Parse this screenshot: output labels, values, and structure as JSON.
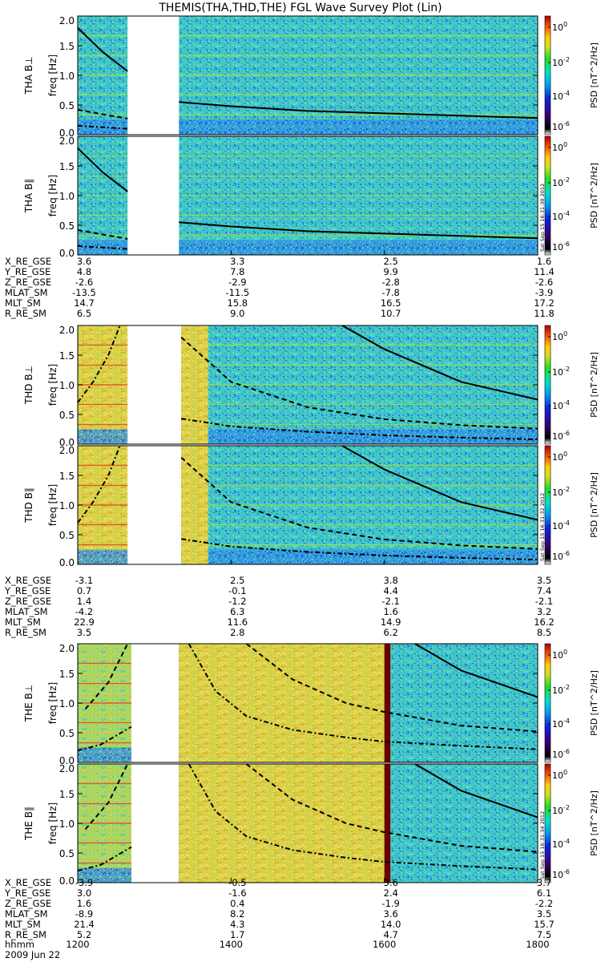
{
  "chart_data": {
    "type": "heatmap",
    "title": "THEMIS(THA,THD,THE) FGL Wave Survey Plot (Lin)",
    "colorbar": {
      "label": "PSD [nT^2/Hz]",
      "ticks": [
        "10^0",
        "10^-2",
        "10^-4",
        "10^-6"
      ],
      "scale": "log"
    },
    "probes": [
      {
        "name": "THA",
        "panels": [
          {
            "ylabel_probe": "THA B⊥",
            "stamp": ""
          },
          {
            "ylabel_probe": "THA B∥",
            "stamp": "Sat Sep 15 16:31:30 2012"
          }
        ],
        "data_windows": [
          [
            1200,
            1265
          ],
          [
            1332,
            1800
          ]
        ],
        "curves": {
          "solid_1": [
            [
              1200,
              1.8
            ],
            [
              1232,
              1.4
            ],
            [
              1265,
              1.07
            ]
          ],
          "solid_2": [
            [
              1332,
              0.55
            ],
            [
              1400,
              0.48
            ],
            [
              1500,
              0.4
            ],
            [
              1600,
              0.36
            ],
            [
              1700,
              0.32
            ],
            [
              1800,
              0.28
            ]
          ],
          "dashed": [
            [
              1200,
              0.42
            ],
            [
              1265,
              0.27
            ]
          ],
          "dashdot": [
            [
              1200,
              0.15
            ],
            [
              1265,
              0.1
            ]
          ]
        },
        "ephemeris": {
          "labels": [
            "X_RE_GSE",
            "Y_RE_GSE",
            "Z_RE_GSE",
            "MLAT_SM",
            "MLT_SM",
            "R_RE_SM"
          ],
          "columns": [
            [
              "3.6",
              "4.8",
              "-2.6",
              "-13.5",
              "14.7",
              "6.5"
            ],
            [
              "3.3",
              "7.8",
              "-2.9",
              "-11.5",
              "15.8",
              "9.0"
            ],
            [
              "2.5",
              "9.9",
              "-2.8",
              "-7.8",
              "16.5",
              "10.7"
            ],
            [
              "1.6",
              "11.4",
              "-2.6",
              "-3.9",
              "17.2",
              "11.8"
            ]
          ]
        }
      },
      {
        "name": "THD",
        "panels": [
          {
            "ylabel_probe": "THD B⊥",
            "stamp": ""
          },
          {
            "ylabel_probe": "THD B∥",
            "stamp": "Sat Sep 15 16:31:32 2012"
          }
        ],
        "data_windows": [
          [
            1200,
            1265
          ],
          [
            1335,
            1800
          ]
        ],
        "curves": {
          "dashdot_1": [
            [
              1200,
              0.7
            ],
            [
              1220,
              1.05
            ],
            [
              1240,
              1.5
            ],
            [
              1255,
              2.0
            ]
          ],
          "solid": [
            [
              1545,
              2.0
            ],
            [
              1600,
              1.6
            ],
            [
              1700,
              1.05
            ],
            [
              1800,
              0.75
            ]
          ],
          "dashed": [
            [
              1335,
              1.8
            ],
            [
              1400,
              1.05
            ],
            [
              1500,
              0.62
            ],
            [
              1600,
              0.42
            ],
            [
              1700,
              0.32
            ],
            [
              1800,
              0.26
            ]
          ],
          "dashdot_2": [
            [
              1335,
              0.43
            ],
            [
              1400,
              0.3
            ],
            [
              1500,
              0.21
            ],
            [
              1600,
              0.15
            ],
            [
              1700,
              0.11
            ],
            [
              1800,
              0.08
            ]
          ]
        },
        "ephemeris": {
          "labels": [
            "X_RE_GSE",
            "Y_RE_GSE",
            "Z_RE_GSE",
            "MLAT_SM",
            "MLT_SM",
            "R_RE_SM"
          ],
          "columns": [
            [
              "-3.1",
              "0.7",
              "1.4",
              "-4.2",
              "22.9",
              "3.5"
            ],
            [
              "2.5",
              "-0.1",
              "-1.2",
              "6.3",
              "11.6",
              "2.8"
            ],
            [
              "3.8",
              "4.4",
              "-2.1",
              "1.6",
              "14.9",
              "6.2"
            ],
            [
              "3.5",
              "7.4",
              "-2.1",
              "3.2",
              "16.2",
              "8.5"
            ]
          ]
        }
      },
      {
        "name": "THE",
        "panels": [
          {
            "ylabel_probe": "THE B⊥",
            "stamp": ""
          },
          {
            "ylabel_probe": "THE B∥",
            "stamp": "Sat Sep 15 16:31:34 2012"
          }
        ],
        "data_windows": [
          [
            1200,
            1270
          ],
          [
            1332,
            1800
          ]
        ],
        "curves": {
          "dashed_1": [
            [
              1210,
              0.9
            ],
            [
              1240,
              1.35
            ],
            [
              1265,
              2.0
            ]
          ],
          "dashdot_1": [
            [
              1200,
              0.2
            ],
            [
              1230,
              0.3
            ],
            [
              1270,
              0.6
            ]
          ],
          "dashdot_2": [
            [
              1345,
              2.0
            ],
            [
              1380,
              1.2
            ],
            [
              1420,
              0.78
            ],
            [
              1480,
              0.55
            ],
            [
              1550,
              0.42
            ],
            [
              1600,
              0.35
            ],
            [
              1700,
              0.28
            ],
            [
              1800,
              0.22
            ]
          ],
          "dashed_2": [
            [
              1420,
              2.0
            ],
            [
              1480,
              1.4
            ],
            [
              1550,
              1.0
            ],
            [
              1600,
              0.85
            ],
            [
              1700,
              0.62
            ],
            [
              1800,
              0.52
            ]
          ],
          "solid": [
            [
              1640,
              2.0
            ],
            [
              1700,
              1.55
            ],
            [
              1800,
              1.1
            ]
          ]
        },
        "ephemeris": {
          "labels": [
            "X_RE_GSE",
            "Y_RE_GSE",
            "Z_RE_GSE",
            "MLAT_SM",
            "MLT_SM",
            "R_RE_SM"
          ],
          "columns": [
            [
              "-3.9",
              "3.0",
              "1.6",
              "-8.9",
              "21.4",
              "5.2"
            ],
            [
              "-0.5",
              "-1.6",
              "0.4",
              "8.2",
              "4.3",
              "1.7"
            ],
            [
              "3.6",
              "2.4",
              "-1.9",
              "3.6",
              "14.0",
              "4.7"
            ],
            [
              "3.7",
              "6.1",
              "-2.2",
              "3.5",
              "15.7",
              "7.5"
            ]
          ]
        }
      }
    ],
    "ylabel": "freq [Hz]",
    "y_ticks": [
      "0.0",
      "0.5",
      "1.0",
      "1.5",
      "2.0"
    ],
    "ylim": [
      0,
      2
    ],
    "xlim": [
      1200,
      1800
    ],
    "x_label": "hhmm",
    "x_ticks": [
      "1200",
      "1400",
      "1600",
      "1800"
    ],
    "date": "2009 Jun 22"
  }
}
